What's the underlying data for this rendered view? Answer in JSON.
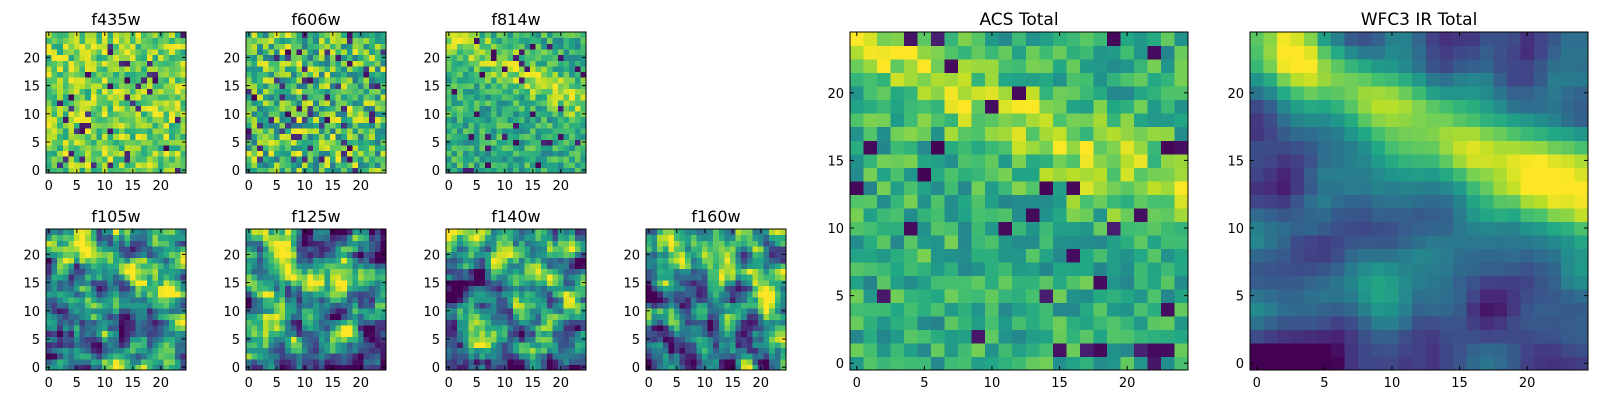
{
  "figure": {
    "background": "#ffffff"
  },
  "chart_data": [
    {
      "type": "heatmap",
      "title": "f435w",
      "colormap": "viridis",
      "x_ticks": [
        0,
        5,
        10,
        15,
        20
      ],
      "y_ticks": [
        0,
        5,
        10,
        15,
        20
      ],
      "xlim": [
        0,
        25
      ],
      "ylim": [
        0,
        25
      ],
      "grid_size": [
        25,
        25
      ],
      "pattern": "noise-bright",
      "seed": 11
    },
    {
      "type": "heatmap",
      "title": "f606w",
      "colormap": "viridis",
      "x_ticks": [
        0,
        5,
        10,
        15,
        20
      ],
      "y_ticks": [
        0,
        5,
        10,
        15,
        20
      ],
      "xlim": [
        0,
        25
      ],
      "ylim": [
        0,
        25
      ],
      "grid_size": [
        25,
        25
      ],
      "pattern": "noise-mixed",
      "seed": 23
    },
    {
      "type": "heatmap",
      "title": "f814w",
      "colormap": "viridis",
      "x_ticks": [
        0,
        5,
        10,
        15,
        20
      ],
      "y_ticks": [
        0,
        5,
        10,
        15,
        20
      ],
      "xlim": [
        0,
        25
      ],
      "ylim": [
        0,
        25
      ],
      "grid_size": [
        25,
        25
      ],
      "pattern": "noise-diagonal",
      "seed": 37
    },
    {
      "type": "heatmap",
      "title": "f105w",
      "colormap": "viridis",
      "x_ticks": [
        0,
        5,
        10,
        15,
        20
      ],
      "y_ticks": [
        0,
        5,
        10,
        15,
        20
      ],
      "xlim": [
        0,
        25
      ],
      "ylim": [
        0,
        25
      ],
      "grid_size": [
        25,
        25
      ],
      "pattern": "smooth-diagonal",
      "seed": 41
    },
    {
      "type": "heatmap",
      "title": "f125w",
      "colormap": "viridis",
      "x_ticks": [
        0,
        5,
        10,
        15,
        20
      ],
      "y_ticks": [
        0,
        5,
        10,
        15,
        20
      ],
      "xlim": [
        0,
        25
      ],
      "ylim": [
        0,
        25
      ],
      "grid_size": [
        25,
        25
      ],
      "pattern": "smooth-diagonal",
      "seed": 53
    },
    {
      "type": "heatmap",
      "title": "f140w",
      "colormap": "viridis",
      "x_ticks": [
        0,
        5,
        10,
        15,
        20
      ],
      "y_ticks": [
        0,
        5,
        10,
        15,
        20
      ],
      "xlim": [
        0,
        25
      ],
      "ylim": [
        0,
        25
      ],
      "grid_size": [
        25,
        25
      ],
      "pattern": "smooth-diagonal",
      "seed": 67
    },
    {
      "type": "heatmap",
      "title": "f160w",
      "colormap": "viridis",
      "x_ticks": [
        0,
        5,
        10,
        15,
        20
      ],
      "y_ticks": [
        0,
        5,
        10,
        15,
        20
      ],
      "xlim": [
        0,
        25
      ],
      "ylim": [
        0,
        25
      ],
      "grid_size": [
        25,
        25
      ],
      "pattern": "smooth-diagonal",
      "seed": 79
    },
    {
      "type": "heatmap",
      "title": "ACS Total",
      "colormap": "viridis",
      "x_ticks": [
        0,
        5,
        10,
        15,
        20
      ],
      "y_ticks": [
        0,
        5,
        10,
        15,
        20
      ],
      "xlim": [
        0,
        25
      ],
      "ylim": [
        0,
        25
      ],
      "grid_size": [
        25,
        25
      ],
      "pattern": "noise-diagonal",
      "seed": 83
    },
    {
      "type": "heatmap",
      "title": "WFC3 IR Total",
      "colormap": "viridis",
      "x_ticks": [
        0,
        5,
        10,
        15,
        20
      ],
      "y_ticks": [
        0,
        5,
        10,
        15,
        20
      ],
      "xlim": [
        0,
        25
      ],
      "ylim": [
        0,
        25
      ],
      "grid_size": [
        25,
        25
      ],
      "pattern": "smooth-strong",
      "seed": 97
    }
  ]
}
